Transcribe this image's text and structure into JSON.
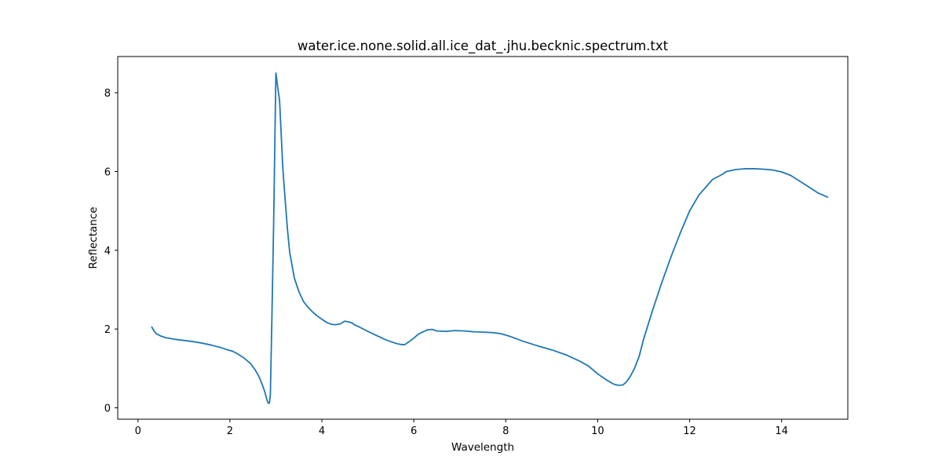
{
  "chart_data": {
    "type": "line",
    "title": "water.ice.none.solid.all.ice_dat_.jhu.becknic.spectrum.txt",
    "xlabel": "Wavelength",
    "ylabel": "Reflectance",
    "xlim": [
      -0.44,
      15.44
    ],
    "ylim": [
      -0.29,
      8.92
    ],
    "xticks": [
      0,
      2,
      4,
      6,
      8,
      10,
      12,
      14
    ],
    "yticks": [
      0,
      2,
      4,
      6,
      8
    ],
    "grid": false,
    "legend": "none",
    "line_color": "#1f77b4",
    "series": [
      {
        "x": [
          0.3,
          0.35,
          0.4,
          0.5,
          0.6,
          0.8,
          1.0,
          1.2,
          1.4,
          1.6,
          1.8,
          1.95,
          2.05,
          2.15,
          2.3,
          2.45,
          2.55,
          2.62,
          2.7,
          2.76,
          2.8,
          2.83,
          2.86,
          2.88,
          2.91,
          2.95,
          3.0,
          3.05,
          3.08,
          3.15,
          3.2,
          3.25,
          3.3,
          3.4,
          3.5,
          3.6,
          3.7,
          3.8,
          3.9,
          4.0,
          4.1,
          4.2,
          4.3,
          4.4,
          4.5,
          4.58,
          4.65,
          4.72,
          4.8,
          5.0,
          5.2,
          5.4,
          5.6,
          5.7,
          5.8,
          5.9,
          6.0,
          6.1,
          6.2,
          6.3,
          6.4,
          6.5,
          6.7,
          6.9,
          7.1,
          7.3,
          7.5,
          7.7,
          7.9,
          8.1,
          8.4,
          8.7,
          9.0,
          9.3,
          9.6,
          9.8,
          10.0,
          10.2,
          10.35,
          10.45,
          10.55,
          10.62,
          10.7,
          10.8,
          10.9,
          11.0,
          11.2,
          11.4,
          11.6,
          11.8,
          12.0,
          12.2,
          12.5,
          12.7,
          12.8,
          13.0,
          13.2,
          13.4,
          13.6,
          13.8,
          14.0,
          14.2,
          14.4,
          14.6,
          14.8,
          15.0
        ],
        "y": [
          2.05,
          1.95,
          1.88,
          1.82,
          1.78,
          1.74,
          1.71,
          1.68,
          1.64,
          1.59,
          1.53,
          1.47,
          1.44,
          1.38,
          1.27,
          1.12,
          0.96,
          0.82,
          0.6,
          0.4,
          0.22,
          0.12,
          0.12,
          0.35,
          2.1,
          4.6,
          8.5,
          8.05,
          7.8,
          6.1,
          5.3,
          4.55,
          3.95,
          3.3,
          2.95,
          2.7,
          2.55,
          2.43,
          2.33,
          2.25,
          2.17,
          2.12,
          2.11,
          2.13,
          2.2,
          2.18,
          2.16,
          2.1,
          2.06,
          1.94,
          1.83,
          1.72,
          1.64,
          1.61,
          1.6,
          1.68,
          1.77,
          1.87,
          1.93,
          1.98,
          1.99,
          1.95,
          1.94,
          1.96,
          1.95,
          1.93,
          1.92,
          1.91,
          1.88,
          1.81,
          1.68,
          1.57,
          1.47,
          1.35,
          1.19,
          1.06,
          0.86,
          0.7,
          0.6,
          0.57,
          0.58,
          0.65,
          0.78,
          1.0,
          1.3,
          1.75,
          2.5,
          3.2,
          3.85,
          4.45,
          5.0,
          5.4,
          5.8,
          5.92,
          6.0,
          6.05,
          6.07,
          6.07,
          6.06,
          6.04,
          5.99,
          5.9,
          5.75,
          5.6,
          5.45,
          5.35
        ]
      }
    ]
  }
}
